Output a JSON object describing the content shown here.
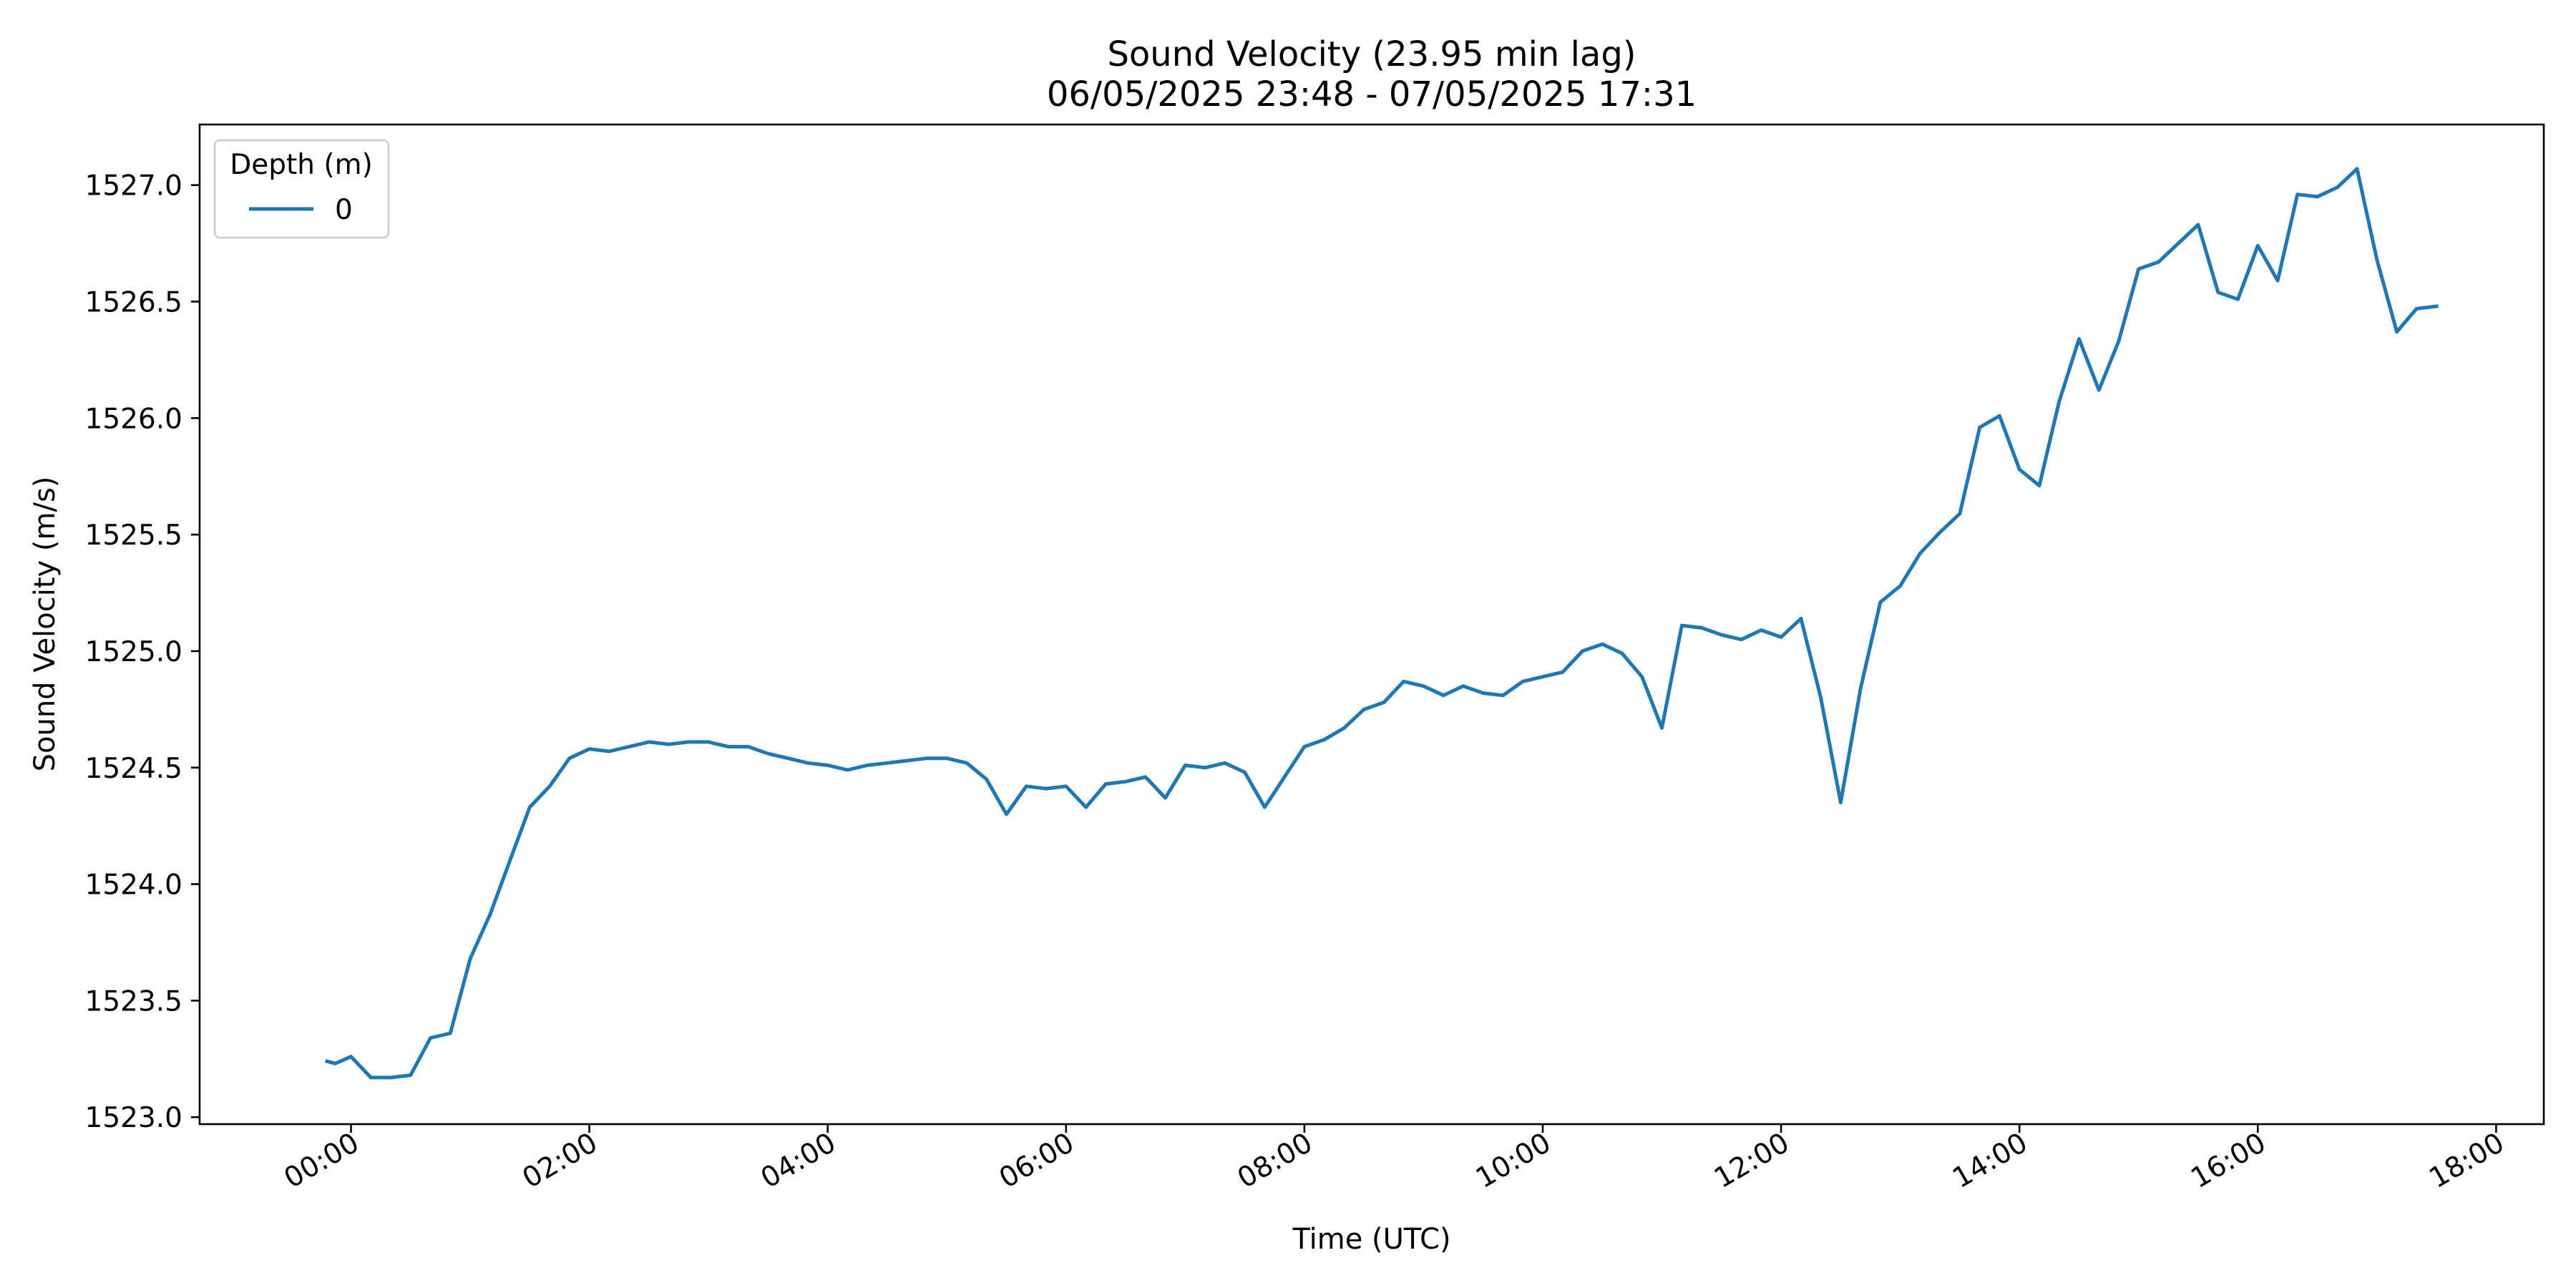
{
  "chart_data": {
    "type": "line",
    "title": "Sound Velocity (23.95 min lag)",
    "subtitle": "06/05/2025 23:48 - 07/05/2025 17:31",
    "xlabel": "Time (UTC)",
    "ylabel": "Sound Velocity (m/s)",
    "x_unit": "hours since 00:00 UTC (07/05/2025)",
    "xlim": [
      -1.27,
      18.4
    ],
    "ylim": [
      1522.97,
      1527.26
    ],
    "x_ticks": [
      0,
      2,
      4,
      6,
      8,
      10,
      12,
      14,
      16,
      18
    ],
    "x_tick_labels": [
      "00:00",
      "02:00",
      "04:00",
      "06:00",
      "08:00",
      "10:00",
      "12:00",
      "14:00",
      "16:00",
      "18:00"
    ],
    "y_ticks": [
      1523.0,
      1523.5,
      1524.0,
      1524.5,
      1525.0,
      1525.5,
      1526.0,
      1526.5,
      1527.0
    ],
    "y_tick_labels": [
      "1523.0",
      "1523.5",
      "1524.0",
      "1524.5",
      "1525.0",
      "1525.5",
      "1526.0",
      "1526.5",
      "1527.0"
    ],
    "grid": false,
    "legend": {
      "title": "Depth (m)",
      "position": "top-left"
    },
    "series": [
      {
        "name": "0",
        "color": "#1f77b4",
        "x": [
          -0.2,
          -0.133,
          0.0,
          0.167,
          0.333,
          0.5,
          0.667,
          0.833,
          1.0,
          1.167,
          1.333,
          1.5,
          1.667,
          1.833,
          2.0,
          2.167,
          2.333,
          2.5,
          2.667,
          2.833,
          3.0,
          3.167,
          3.333,
          3.5,
          3.667,
          3.833,
          4.0,
          4.167,
          4.333,
          4.5,
          4.667,
          4.833,
          5.0,
          5.167,
          5.333,
          5.5,
          5.667,
          5.833,
          6.0,
          6.167,
          6.333,
          6.5,
          6.667,
          6.833,
          7.0,
          7.167,
          7.333,
          7.5,
          7.667,
          7.833,
          8.0,
          8.167,
          8.333,
          8.5,
          8.667,
          8.833,
          9.0,
          9.167,
          9.333,
          9.5,
          9.667,
          9.833,
          10.0,
          10.167,
          10.333,
          10.5,
          10.667,
          10.833,
          11.0,
          11.167,
          11.333,
          11.5,
          11.667,
          11.833,
          12.0,
          12.167,
          12.333,
          12.5,
          12.667,
          12.833,
          13.0,
          13.167,
          13.333,
          13.5,
          13.667,
          13.833,
          14.0,
          14.167,
          14.333,
          14.5,
          14.667,
          14.833,
          15.0,
          15.167,
          15.333,
          15.5,
          15.667,
          15.833,
          16.0,
          16.167,
          16.333,
          16.5,
          16.667,
          16.833,
          17.0,
          17.167,
          17.333,
          17.5
        ],
        "y": [
          1523.24,
          1523.23,
          1523.26,
          1523.17,
          1523.17,
          1523.18,
          1523.34,
          1523.36,
          1523.68,
          1523.87,
          1524.1,
          1524.33,
          1524.42,
          1524.54,
          1524.58,
          1524.57,
          1524.59,
          1524.61,
          1524.6,
          1524.61,
          1524.61,
          1524.59,
          1524.59,
          1524.56,
          1524.54,
          1524.52,
          1524.51,
          1524.49,
          1524.51,
          1524.52,
          1524.53,
          1524.54,
          1524.54,
          1524.52,
          1524.45,
          1524.3,
          1524.42,
          1524.41,
          1524.42,
          1524.33,
          1524.43,
          1524.44,
          1524.46,
          1524.37,
          1524.51,
          1524.5,
          1524.52,
          1524.48,
          1524.33,
          1524.46,
          1524.59,
          1524.62,
          1524.67,
          1524.75,
          1524.78,
          1524.87,
          1524.85,
          1524.81,
          1524.85,
          1524.82,
          1524.81,
          1524.87,
          1524.89,
          1524.91,
          1525.0,
          1525.03,
          1524.99,
          1524.89,
          1524.67,
          1525.11,
          1525.1,
          1525.07,
          1525.05,
          1525.09,
          1525.06,
          1525.14,
          1524.8,
          1524.35,
          1524.84,
          1525.21,
          1525.28,
          1525.42,
          1525.51,
          1525.59,
          1525.96,
          1526.01,
          1525.78,
          1525.71,
          1526.07,
          1526.34,
          1526.12,
          1526.33,
          1526.64,
          1526.67,
          1526.75,
          1526.83,
          1526.54,
          1526.51,
          1526.74,
          1526.59,
          1526.96,
          1526.95,
          1526.99,
          1527.07,
          1526.68,
          1526.37,
          1526.47,
          1526.48
        ]
      }
    ]
  }
}
